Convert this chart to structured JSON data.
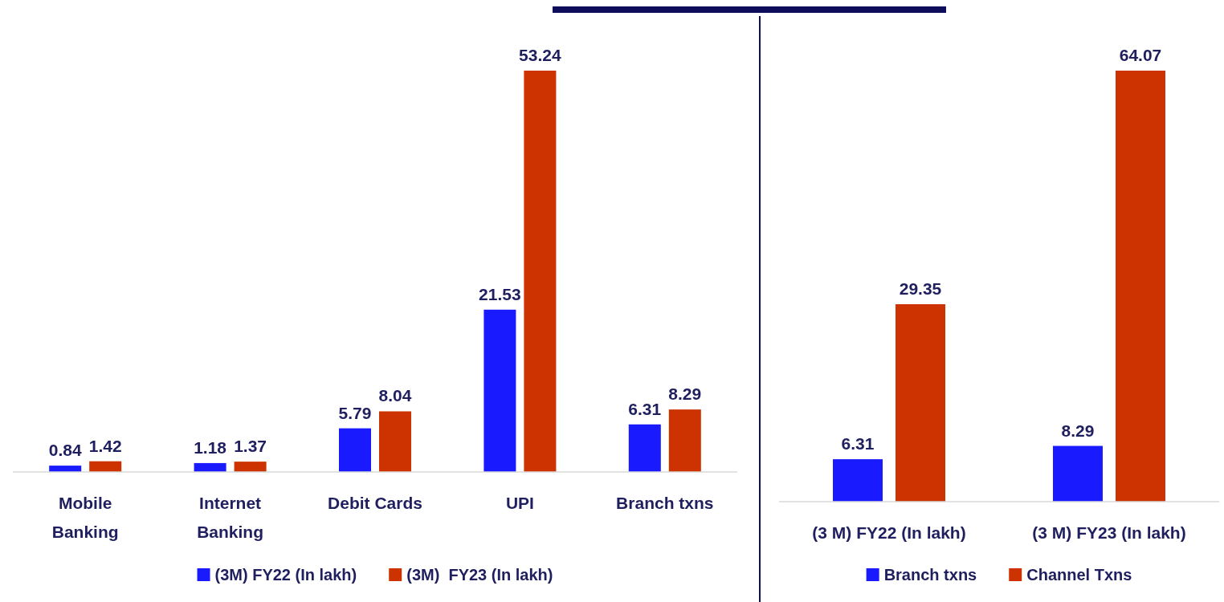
{
  "chart_data": [
    {
      "type": "bar",
      "categories": [
        "Mobile Banking",
        "Internet Banking",
        "Debit Cards",
        "UPI",
        "Branch txns"
      ],
      "series": [
        {
          "name": "(3M) FY22 (In lakh)",
          "color": "#1a1aff",
          "values": [
            0.84,
            1.18,
            5.79,
            21.53,
            6.31
          ]
        },
        {
          "name": "(3M)  FY23 (In lakh)",
          "color": "#cc3300",
          "values": [
            1.42,
            1.37,
            8.04,
            53.24,
            8.29
          ]
        }
      ],
      "data_labels": true,
      "legend": "bottom",
      "grid": false
    },
    {
      "type": "bar",
      "categories": [
        "(3 M) FY22 (In lakh)",
        "(3 M) FY23 (In lakh)"
      ],
      "series": [
        {
          "name": "Branch txns",
          "color": "#1a1aff",
          "values": [
            6.31,
            8.29
          ]
        },
        {
          "name": "Channel Txns",
          "color": "#cc3300",
          "values": [
            29.35,
            64.07
          ]
        }
      ],
      "data_labels": true,
      "legend": "bottom",
      "grid": false
    }
  ]
}
